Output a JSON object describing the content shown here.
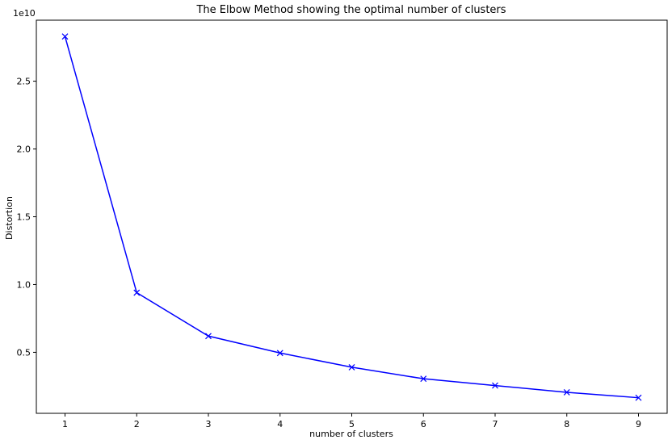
{
  "chart_data": {
    "type": "line",
    "title": "The Elbow Method showing the optimal number of clusters",
    "xlabel": "number of clusters",
    "ylabel": "Distortion",
    "y_offset_label": "1e10",
    "xlim": [
      0.6,
      9.4
    ],
    "ylim": [
      500000000.0,
      29500000000.0
    ],
    "x_ticks": [
      1,
      2,
      3,
      4,
      5,
      6,
      7,
      8,
      9
    ],
    "x_tick_labels": [
      "1",
      "2",
      "3",
      "4",
      "5",
      "6",
      "7",
      "8",
      "9"
    ],
    "y_ticks": [
      5000000000.0,
      10000000000.0,
      15000000000.0,
      20000000000.0,
      25000000000.0
    ],
    "y_tick_labels": [
      "0.5",
      "1.0",
      "1.5",
      "2.0",
      "2.5"
    ],
    "grid": false,
    "series": [
      {
        "color": "#0000ff",
        "marker": "x",
        "x": [
          1,
          2,
          3,
          4,
          5,
          6,
          7,
          8,
          9
        ],
        "values": [
          28300000000,
          9400000000,
          6200000000,
          4950000000,
          3900000000,
          3050000000,
          2550000000,
          2050000000,
          1650000000
        ]
      }
    ]
  }
}
